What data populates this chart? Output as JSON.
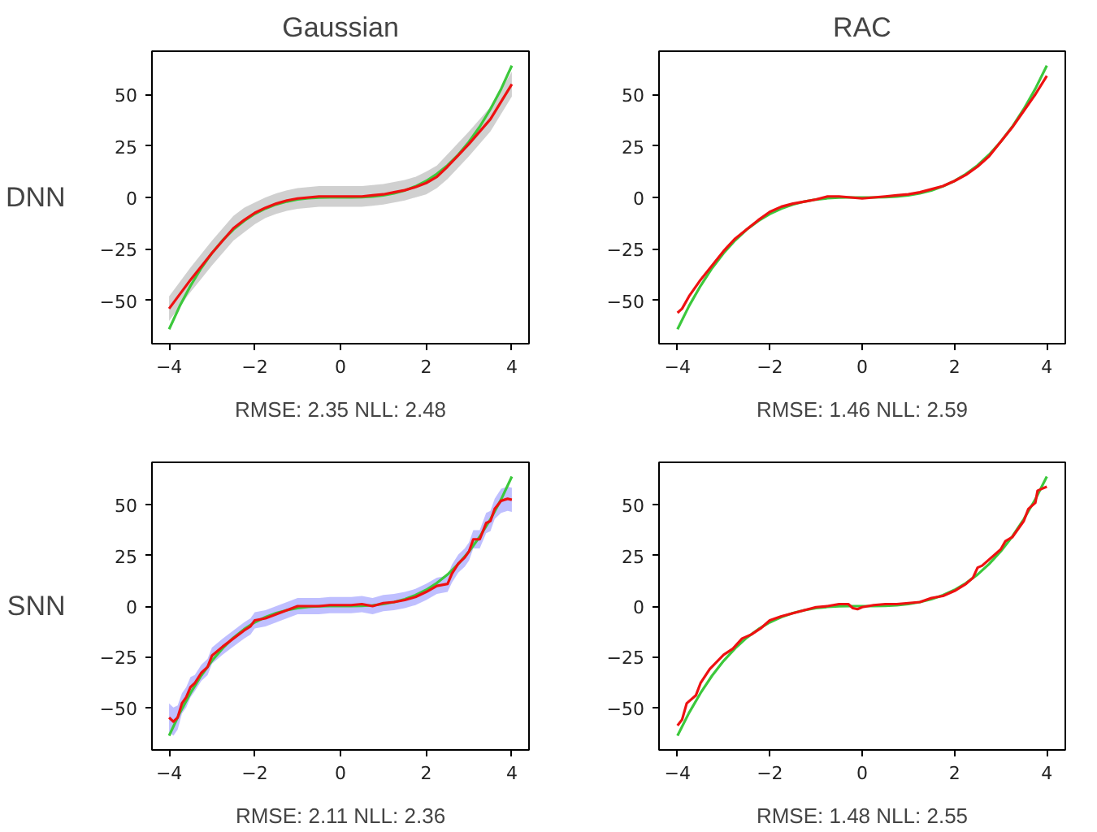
{
  "chart_data": [
    {
      "type": "line",
      "title": "Gaussian",
      "ylabel": "DNN",
      "xlabel": "RMSE: 2.35 NLL: 2.48",
      "xlim": [
        -4.4,
        4.4
      ],
      "ylim": [
        -71,
        71
      ],
      "xticks": [
        -4,
        -2,
        0,
        2,
        4
      ],
      "yticks": [
        -50,
        -25,
        0,
        25,
        50
      ],
      "x": [
        -4,
        -3.75,
        -3.5,
        -3.25,
        -3,
        -2.75,
        -2.5,
        -2.25,
        -2,
        -1.75,
        -1.5,
        -1.25,
        -1,
        -0.75,
        -0.5,
        -0.25,
        0,
        0.25,
        0.5,
        0.75,
        1,
        1.25,
        1.5,
        1.75,
        2,
        2.25,
        2.5,
        2.75,
        3,
        3.25,
        3.5,
        3.75,
        4
      ],
      "series": [
        {
          "color": "#3cc83c",
          "values": [
            -64,
            -52.7,
            -42.9,
            -34.3,
            -27,
            -20.8,
            -15.6,
            -11.4,
            -8,
            -5.4,
            -3.4,
            -2,
            -1,
            -0.4,
            -0.1,
            0,
            0,
            0,
            0.1,
            0.4,
            1,
            2,
            3.4,
            5.4,
            8,
            11.4,
            15.6,
            20.8,
            27,
            34.3,
            42.9,
            52.7,
            64
          ]
        },
        {
          "color": "#ee1111",
          "values": [
            -54,
            -47,
            -40,
            -33.5,
            -27,
            -21,
            -15,
            -11,
            -7.5,
            -5,
            -3,
            -1.5,
            -0.5,
            0,
            0.5,
            0.5,
            0.5,
            0.5,
            0.5,
            1,
            1.5,
            2.5,
            3.5,
            5,
            7,
            10,
            15,
            20.5,
            26,
            32,
            38,
            46.5,
            55
          ],
          "lower": [
            -60,
            -53,
            -46,
            -39.5,
            -33,
            -27,
            -21,
            -17,
            -13,
            -10,
            -8,
            -6.5,
            -5.5,
            -5,
            -4.5,
            -4.5,
            -4.5,
            -4.5,
            -4.5,
            -4,
            -3.5,
            -2.5,
            -1.5,
            0,
            1.5,
            4.5,
            9,
            14.5,
            20,
            26,
            32,
            40.5,
            49
          ],
          "upper": [
            -48,
            -41,
            -34,
            -27.5,
            -21,
            -15,
            -9,
            -5,
            -2.5,
            0,
            2,
            3.5,
            4.5,
            5,
            5.5,
            5.5,
            5.5,
            5.5,
            5.5,
            6,
            6.5,
            7.5,
            8.5,
            10,
            12.5,
            15.5,
            21,
            26.5,
            32,
            38,
            44,
            52.5,
            61
          ]
        }
      ]
    },
    {
      "type": "line",
      "title": "RAC",
      "xlabel": "RMSE: 1.46 NLL: 2.59",
      "xlim": [
        -4.4,
        4.4
      ],
      "ylim": [
        -71,
        71
      ],
      "xticks": [
        -4,
        -2,
        0,
        2,
        4
      ],
      "yticks": [
        -50,
        -25,
        0,
        25,
        50
      ],
      "x": [
        -4,
        -3.75,
        -3.5,
        -3.25,
        -3,
        -2.75,
        -2.5,
        -2.25,
        -2,
        -1.75,
        -1.5,
        -1.25,
        -1,
        -0.75,
        -0.5,
        -0.25,
        0,
        0.25,
        0.5,
        0.75,
        1,
        1.25,
        1.5,
        1.75,
        2,
        2.25,
        2.5,
        2.75,
        3,
        3.25,
        3.5,
        3.75,
        4
      ],
      "series": [
        {
          "color": "#3cc83c",
          "values": [
            -64,
            -52.7,
            -42.9,
            -34.3,
            -27,
            -20.8,
            -15.6,
            -11.4,
            -8,
            -5.4,
            -3.4,
            -2,
            -1,
            -0.4,
            -0.1,
            0,
            0,
            0,
            0.1,
            0.4,
            1,
            2,
            3.4,
            5.4,
            8,
            11.4,
            15.6,
            20.8,
            27,
            34.3,
            42.9,
            52.7,
            64
          ]
        },
        {
          "color": "#ee1111",
          "x": [
            -4,
            -3.9,
            -3.75,
            -3.5,
            -3.25,
            -3,
            -2.75,
            -2.5,
            -2.25,
            -2,
            -1.75,
            -1.5,
            -1.25,
            -1,
            -0.75,
            -0.5,
            -0.25,
            0,
            0.25,
            0.5,
            0.75,
            1,
            1.25,
            1.5,
            1.75,
            2,
            2.25,
            2.5,
            2.75,
            3,
            3.25,
            3.5,
            3.75,
            4
          ],
          "values": [
            -56,
            -54,
            -48,
            -40,
            -33,
            -26,
            -20,
            -15.5,
            -11,
            -7,
            -4.5,
            -3,
            -2,
            -1,
            0.5,
            0.5,
            0,
            -0.5,
            0,
            0.5,
            1,
            1.5,
            2.5,
            4,
            5.5,
            8,
            11,
            15,
            20,
            27,
            34,
            42,
            50,
            59
          ]
        }
      ]
    },
    {
      "type": "line",
      "ylabel": "SNN",
      "xlabel": "RMSE: 2.11 NLL: 2.36",
      "xlim": [
        -4.4,
        4.4
      ],
      "ylim": [
        -71,
        71
      ],
      "xticks": [
        -4,
        -2,
        0,
        2,
        4
      ],
      "yticks": [
        -50,
        -25,
        0,
        25,
        50
      ],
      "x": [
        -4,
        -3.75,
        -3.5,
        -3.25,
        -3,
        -2.75,
        -2.5,
        -2.25,
        -2,
        -1.75,
        -1.5,
        -1.25,
        -1,
        -0.75,
        -0.5,
        -0.25,
        0,
        0.25,
        0.5,
        0.75,
        1,
        1.25,
        1.5,
        1.75,
        2,
        2.25,
        2.5,
        2.75,
        3,
        3.25,
        3.5,
        3.75,
        4
      ],
      "series": [
        {
          "color": "#3cc83c",
          "values": [
            -64,
            -52.7,
            -42.9,
            -34.3,
            -27,
            -20.8,
            -15.6,
            -11.4,
            -8,
            -5.4,
            -3.4,
            -2,
            -1,
            -0.4,
            -0.1,
            0,
            0,
            0,
            0.1,
            0.4,
            1,
            2,
            3.4,
            5.4,
            8,
            11.4,
            15.6,
            20.8,
            27,
            34.3,
            42.9,
            52.7,
            64
          ]
        },
        {
          "color": "#ee1111",
          "x": [
            -4,
            -3.9,
            -3.8,
            -3.7,
            -3.6,
            -3.5,
            -3.4,
            -3.25,
            -3.1,
            -3,
            -2.75,
            -2.5,
            -2.25,
            -2.1,
            -2,
            -1.75,
            -1.5,
            -1.25,
            -1,
            -0.75,
            -0.5,
            -0.25,
            0,
            0.25,
            0.5,
            0.75,
            1,
            1.25,
            1.5,
            1.75,
            2,
            2.25,
            2.5,
            2.6,
            2.75,
            2.9,
            3,
            3.1,
            3.25,
            3.4,
            3.5,
            3.6,
            3.75,
            3.9,
            4
          ],
          "values": [
            -55,
            -57,
            -55,
            -48,
            -45,
            -40,
            -38,
            -33,
            -30,
            -24.5,
            -20,
            -16,
            -12,
            -10,
            -7,
            -6,
            -4,
            -2,
            0,
            0,
            0,
            0.5,
            0.5,
            0.5,
            1,
            0,
            1.5,
            2,
            3,
            4.5,
            7,
            10,
            11,
            16,
            21,
            24,
            27,
            33,
            33,
            41,
            42,
            48,
            52,
            53,
            52.5
          ],
          "lower": [
            -62,
            -64,
            -61,
            -53,
            -50,
            -45,
            -42,
            -37,
            -34,
            -28.5,
            -24,
            -20,
            -16,
            -14,
            -11,
            -10,
            -8,
            -6,
            -4,
            -4,
            -4,
            -3.5,
            -3.5,
            -3.5,
            -3,
            -4,
            -2.5,
            -2,
            -1,
            0.5,
            3,
            6,
            7,
            11.5,
            16.5,
            19.5,
            22.5,
            28.5,
            28.5,
            36,
            37,
            43,
            46,
            47,
            46.5
          ],
          "upper": [
            -48,
            -50,
            -49,
            -43,
            -40,
            -35,
            -34,
            -29,
            -26,
            -20.5,
            -16,
            -12,
            -8,
            -6,
            -3,
            -2,
            0,
            2,
            4,
            4,
            4,
            4.5,
            4.5,
            4.5,
            5,
            4,
            5.5,
            6,
            7,
            8.5,
            11,
            14,
            15,
            20.5,
            25.5,
            28.5,
            31.5,
            37.5,
            37.5,
            46,
            47,
            53,
            58,
            59,
            58.5
          ]
        }
      ]
    },
    {
      "type": "line",
      "xlabel": "RMSE: 1.48 NLL: 2.55",
      "xlim": [
        -4.4,
        4.4
      ],
      "ylim": [
        -71,
        71
      ],
      "xticks": [
        -4,
        -2,
        0,
        2,
        4
      ],
      "yticks": [
        -50,
        -25,
        0,
        25,
        50
      ],
      "x": [
        -4,
        -3.75,
        -3.5,
        -3.25,
        -3,
        -2.75,
        -2.5,
        -2.25,
        -2,
        -1.75,
        -1.5,
        -1.25,
        -1,
        -0.75,
        -0.5,
        -0.25,
        0,
        0.25,
        0.5,
        0.75,
        1,
        1.25,
        1.5,
        1.75,
        2,
        2.25,
        2.5,
        2.75,
        3,
        3.25,
        3.5,
        3.75,
        4
      ],
      "series": [
        {
          "color": "#3cc83c",
          "values": [
            -64,
            -52.7,
            -42.9,
            -34.3,
            -27,
            -20.8,
            -15.6,
            -11.4,
            -8,
            -5.4,
            -3.4,
            -2,
            -1,
            -0.4,
            -0.1,
            0,
            0,
            0,
            0.1,
            0.4,
            1,
            2,
            3.4,
            5.4,
            8,
            11.4,
            15.6,
            20.8,
            27,
            34.3,
            42.9,
            52.7,
            64
          ]
        },
        {
          "color": "#ee1111",
          "x": [
            -4,
            -3.9,
            -3.8,
            -3.6,
            -3.5,
            -3.3,
            -3,
            -2.8,
            -2.6,
            -2.4,
            -2.2,
            -2,
            -1.75,
            -1.5,
            -1.25,
            -1,
            -0.75,
            -0.5,
            -0.3,
            -0.2,
            -0.1,
            0,
            0.25,
            0.5,
            0.75,
            1,
            1.25,
            1.5,
            1.75,
            2,
            2.25,
            2.4,
            2.5,
            2.6,
            2.75,
            3,
            3.1,
            3.25,
            3.5,
            3.6,
            3.75,
            3.8,
            3.9,
            4
          ],
          "values": [
            -59,
            -56,
            -48,
            -44,
            -38,
            -31,
            -24,
            -21,
            -16,
            -14,
            -11,
            -7,
            -5,
            -3.5,
            -2,
            -0.5,
            0,
            1,
            1,
            -1,
            -1.5,
            -0.5,
            0.5,
            1,
            1,
            1.5,
            2,
            4,
            5,
            7.5,
            11,
            14,
            19,
            20,
            23,
            28,
            32,
            34,
            42,
            48,
            51,
            57,
            58,
            59
          ]
        }
      ]
    }
  ]
}
